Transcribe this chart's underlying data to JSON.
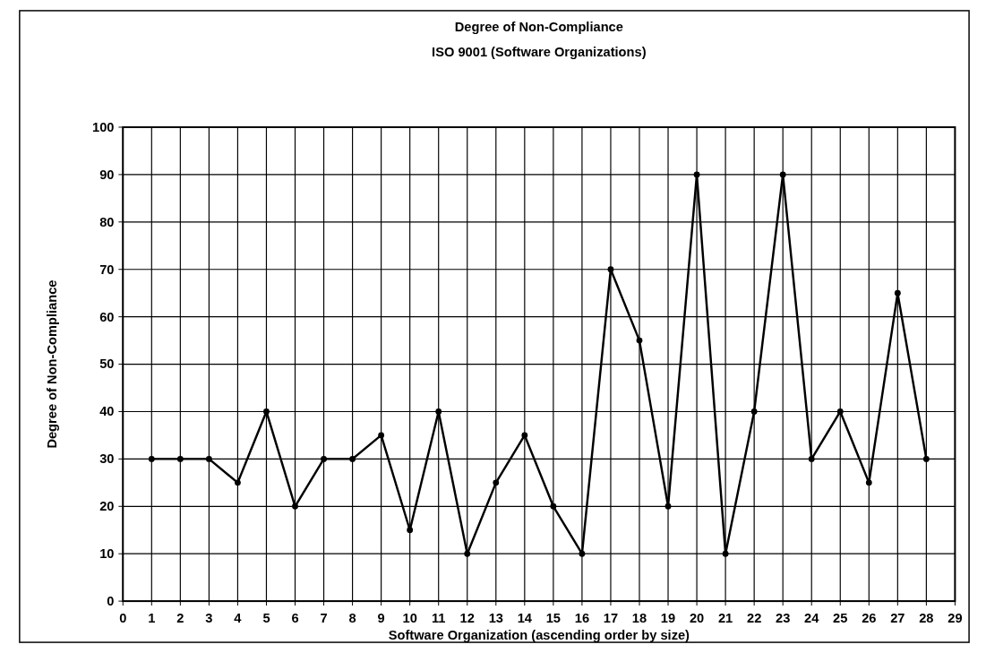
{
  "chart_data": {
    "type": "line",
    "title": "Degree of Non-Compliance",
    "subtitle": "ISO 9001 (Software Organizations)",
    "xlabel": "Software Organization (ascending order by size)",
    "ylabel": "Degree of Non-Compliance",
    "x": [
      1,
      2,
      3,
      4,
      5,
      6,
      7,
      8,
      9,
      10,
      11,
      12,
      13,
      14,
      15,
      16,
      17,
      18,
      19,
      20,
      21,
      22,
      23,
      24,
      25,
      26,
      27,
      28
    ],
    "series": [
      {
        "color": "#000000",
        "values": [
          30,
          30,
          30,
          25,
          40,
          20,
          30,
          30,
          35,
          15,
          40,
          10,
          25,
          35,
          20,
          10,
          70,
          55,
          20,
          90,
          10,
          40,
          90,
          30,
          40,
          25,
          65,
          30
        ]
      }
    ],
    "xlim": [
      0,
      29
    ],
    "xticks": [
      0,
      1,
      2,
      3,
      4,
      5,
      6,
      7,
      8,
      9,
      10,
      11,
      12,
      13,
      14,
      15,
      16,
      17,
      18,
      19,
      20,
      21,
      22,
      23,
      24,
      25,
      26,
      27,
      28,
      29
    ],
    "ylim": [
      0,
      100
    ],
    "yticks": [
      0,
      10,
      20,
      30,
      40,
      50,
      60,
      70,
      80,
      90,
      100
    ],
    "grid": true,
    "marker": "circle",
    "line_style": "solid"
  }
}
